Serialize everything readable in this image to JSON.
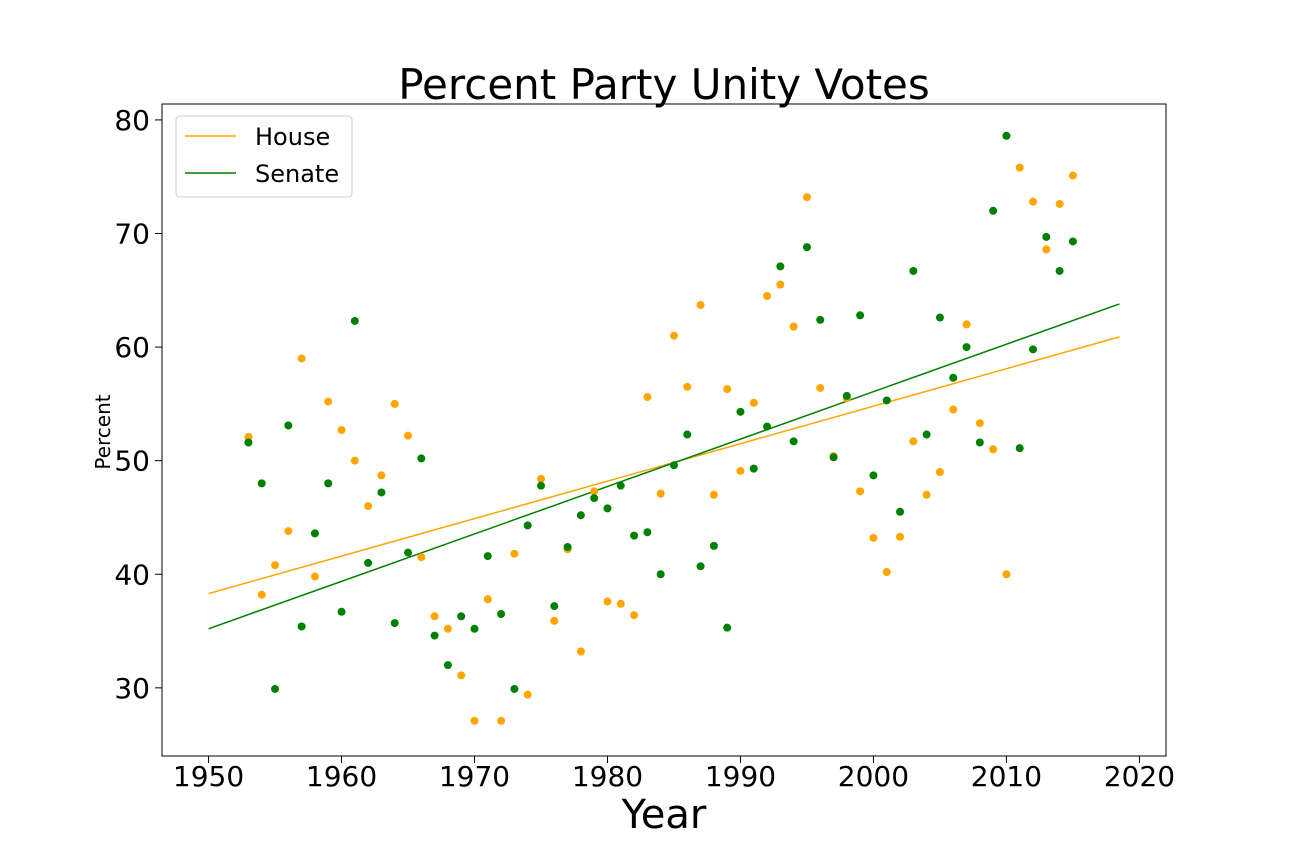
{
  "chart_data": {
    "type": "scatter",
    "title": "Percent Party Unity Votes",
    "xlabel": "Year",
    "ylabel": "Percent",
    "xlim": [
      1946.5,
      2022
    ],
    "ylim": [
      24,
      81.4
    ],
    "xticks": [
      "1950",
      "1960",
      "1970",
      "1980",
      "1990",
      "2000",
      "2010",
      "2020"
    ],
    "yticks": [
      "30",
      "40",
      "50",
      "60",
      "70",
      "80"
    ],
    "grid": false,
    "legend_position": "top-left",
    "series": [
      {
        "name": "House",
        "color": "#ffa500",
        "points": [
          [
            1953,
            52.1
          ],
          [
            1954,
            38.2
          ],
          [
            1955,
            40.8
          ],
          [
            1956,
            43.8
          ],
          [
            1957,
            59.0
          ],
          [
            1958,
            39.8
          ],
          [
            1959,
            55.2
          ],
          [
            1960,
            52.7
          ],
          [
            1961,
            50.0
          ],
          [
            1962,
            46.0
          ],
          [
            1963,
            48.7
          ],
          [
            1964,
            55.0
          ],
          [
            1965,
            52.2
          ],
          [
            1966,
            41.5
          ],
          [
            1967,
            36.3
          ],
          [
            1968,
            35.2
          ],
          [
            1969,
            31.1
          ],
          [
            1970,
            27.1
          ],
          [
            1971,
            37.8
          ],
          [
            1972,
            27.1
          ],
          [
            1973,
            41.8
          ],
          [
            1974,
            29.4
          ],
          [
            1975,
            48.4
          ],
          [
            1976,
            35.9
          ],
          [
            1977,
            42.2
          ],
          [
            1978,
            33.2
          ],
          [
            1979,
            47.3
          ],
          [
            1980,
            37.6
          ],
          [
            1981,
            37.4
          ],
          [
            1982,
            36.4
          ],
          [
            1983,
            55.6
          ],
          [
            1984,
            47.1
          ],
          [
            1985,
            61.0
          ],
          [
            1986,
            56.5
          ],
          [
            1987,
            63.7
          ],
          [
            1988,
            47.0
          ],
          [
            1989,
            56.3
          ],
          [
            1990,
            49.1
          ],
          [
            1991,
            55.1
          ],
          [
            1992,
            64.5
          ],
          [
            1993,
            65.5
          ],
          [
            1994,
            61.8
          ],
          [
            1995,
            73.2
          ],
          [
            1996,
            56.4
          ],
          [
            1997,
            50.4
          ],
          [
            1998,
            55.5
          ],
          [
            1999,
            47.3
          ],
          [
            2000,
            43.2
          ],
          [
            2001,
            40.2
          ],
          [
            2002,
            43.3
          ],
          [
            2003,
            51.7
          ],
          [
            2004,
            47.0
          ],
          [
            2005,
            49.0
          ],
          [
            2006,
            54.5
          ],
          [
            2007,
            62.0
          ],
          [
            2008,
            53.3
          ],
          [
            2009,
            51.0
          ],
          [
            2010,
            40.0
          ],
          [
            2011,
            75.8
          ],
          [
            2012,
            72.8
          ],
          [
            2013,
            68.6
          ],
          [
            2014,
            72.6
          ],
          [
            2015,
            75.1
          ]
        ],
        "trend": [
          [
            1950,
            38.3
          ],
          [
            2018.5,
            60.9
          ]
        ]
      },
      {
        "name": "Senate",
        "color": "#008000",
        "points": [
          [
            1953,
            51.6
          ],
          [
            1954,
            48.0
          ],
          [
            1955,
            29.9
          ],
          [
            1956,
            53.1
          ],
          [
            1957,
            35.4
          ],
          [
            1958,
            43.6
          ],
          [
            1959,
            48.0
          ],
          [
            1960,
            36.7
          ],
          [
            1961,
            62.3
          ],
          [
            1962,
            41.0
          ],
          [
            1963,
            47.2
          ],
          [
            1964,
            35.7
          ],
          [
            1965,
            41.9
          ],
          [
            1966,
            50.2
          ],
          [
            1967,
            34.6
          ],
          [
            1968,
            32.0
          ],
          [
            1969,
            36.3
          ],
          [
            1970,
            35.2
          ],
          [
            1971,
            41.6
          ],
          [
            1972,
            36.5
          ],
          [
            1973,
            29.9
          ],
          [
            1974,
            44.3
          ],
          [
            1975,
            47.8
          ],
          [
            1976,
            37.2
          ],
          [
            1977,
            42.4
          ],
          [
            1978,
            45.2
          ],
          [
            1979,
            46.7
          ],
          [
            1980,
            45.8
          ],
          [
            1981,
            47.8
          ],
          [
            1982,
            43.4
          ],
          [
            1983,
            43.7
          ],
          [
            1984,
            40.0
          ],
          [
            1985,
            49.6
          ],
          [
            1986,
            52.3
          ],
          [
            1987,
            40.7
          ],
          [
            1988,
            42.5
          ],
          [
            1989,
            35.3
          ],
          [
            1990,
            54.3
          ],
          [
            1991,
            49.3
          ],
          [
            1992,
            53.0
          ],
          [
            1993,
            67.1
          ],
          [
            1994,
            51.7
          ],
          [
            1995,
            68.8
          ],
          [
            1996,
            62.4
          ],
          [
            1997,
            50.3
          ],
          [
            1998,
            55.7
          ],
          [
            1999,
            62.8
          ],
          [
            2000,
            48.7
          ],
          [
            2001,
            55.3
          ],
          [
            2002,
            45.5
          ],
          [
            2003,
            66.7
          ],
          [
            2004,
            52.3
          ],
          [
            2005,
            62.6
          ],
          [
            2006,
            57.3
          ],
          [
            2007,
            60.0
          ],
          [
            2008,
            51.6
          ],
          [
            2009,
            72.0
          ],
          [
            2010,
            78.6
          ],
          [
            2011,
            51.1
          ],
          [
            2012,
            59.8
          ],
          [
            2013,
            69.7
          ],
          [
            2014,
            66.7
          ],
          [
            2015,
            69.3
          ]
        ],
        "trend": [
          [
            1950,
            35.2
          ],
          [
            2018.5,
            63.8
          ]
        ]
      }
    ]
  }
}
